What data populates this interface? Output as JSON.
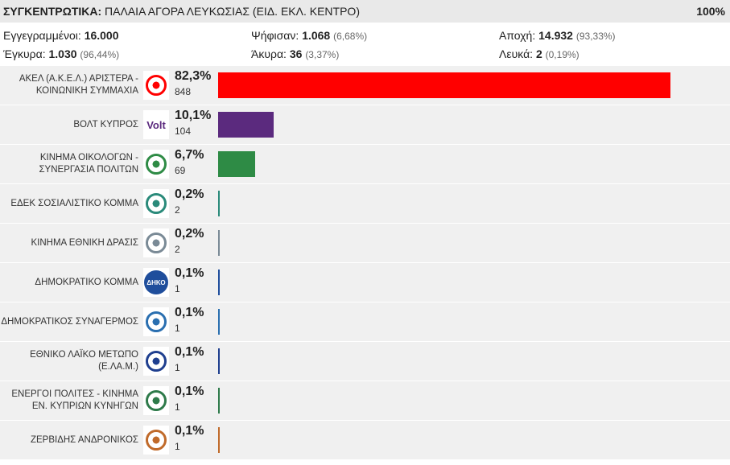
{
  "header": {
    "label": "ΣΥΓΚΕΝΤΡΩΤΙΚΑ:",
    "location": "ΠΑΛΑΙΑ ΑΓΟΡΑ ΛΕΥΚΩΣΙΑΣ (ΕΙΔ. ΕΚΛ. ΚΕΝΤΡΟ)",
    "percent": "100%"
  },
  "stats": {
    "registered": {
      "label": "Εγγεγραμμένοι:",
      "value": "16.000",
      "pct": ""
    },
    "voted": {
      "label": "Ψήφισαν:",
      "value": "1.068",
      "pct": "(6,68%)"
    },
    "abstention": {
      "label": "Αποχή:",
      "value": "14.932",
      "pct": "(93,33%)"
    },
    "valid": {
      "label": "Έγκυρα:",
      "value": "1.030",
      "pct": "(96,44%)"
    },
    "invalid": {
      "label": "Άκυρα:",
      "value": "36",
      "pct": "(3,37%)"
    },
    "blank": {
      "label": "Λευκά:",
      "value": "2",
      "pct": "(0,19%)"
    }
  },
  "chart_data": {
    "type": "bar",
    "orientation": "horizontal",
    "xlim": [
      0,
      82.3
    ],
    "categories": [
      "ΑΚΕΛ (Α.Κ.Ε.Λ.) ΑΡΙΣΤΕΡΑ - ΚΟΙΝΩΝΙΚΗ ΣΥΜΜΑΧΙΑ",
      "ΒΟΛΤ ΚΥΠΡΟΣ",
      "ΚΙΝΗΜΑ ΟΙΚΟΛΟΓΩΝ - ΣΥΝΕΡΓΑΣΙΑ ΠΟΛΙΤΩΝ",
      "ΕΔΕΚ ΣΟΣΙΑΛΙΣΤΙΚΟ ΚΟΜΜΑ",
      "ΚΙΝΗΜΑ ΕΘΝΙΚΗ ΔΡΑΣΙΣ",
      "ΔΗΜΟΚΡΑΤΙΚΟ ΚΟΜΜΑ",
      "ΔΗΜΟΚΡΑΤΙΚΟΣ ΣΥΝΑΓΕΡΜΟΣ",
      "ΕΘΝΙΚΟ ΛΑΪΚΟ ΜΕΤΩΠΟ (Ε.ΛΑ.Μ.)",
      "ΕΝΕΡΓΟΙ ΠΟΛΙΤΕΣ - ΚΙΝΗΜΑ ΕΝ. ΚΥΠΡΙΩΝ ΚΥΝΗΓΩΝ",
      "ΖΕΡΒΙΔΗΣ ΑΝΔΡΟΝΙΚΟΣ"
    ],
    "values": [
      82.3,
      10.1,
      6.7,
      0.2,
      0.2,
      0.1,
      0.1,
      0.1,
      0.1,
      0.1
    ],
    "value_labels": [
      "82,3%",
      "10,1%",
      "6,7%",
      "0,2%",
      "0,2%",
      "0,1%",
      "0,1%",
      "0,1%",
      "0,1%",
      "0,1%"
    ],
    "votes": [
      "848",
      "104",
      "69",
      "2",
      "2",
      "1",
      "1",
      "1",
      "1",
      "1"
    ],
    "colors": [
      "#ff0000",
      "#5b2a7e",
      "#2e8b45",
      "#2a8a7a",
      "#7a8a96",
      "#1f4e9c",
      "#2a6fb0",
      "#1f3f8f",
      "#2e7a4a",
      "#c06a2a"
    ],
    "logo_icons": [
      "akel-logo-icon",
      "volt-logo-icon",
      "ecologists-logo-icon",
      "edek-logo-icon",
      "national-action-logo-icon",
      "diko-logo-icon",
      "disy-logo-icon",
      "elam-logo-icon",
      "active-citizens-logo-icon",
      "candidate-photo-icon"
    ],
    "logo_texts": [
      "",
      "Volt",
      "",
      "",
      "",
      "ΔΗΚΟ",
      "",
      "",
      "",
      ""
    ]
  }
}
